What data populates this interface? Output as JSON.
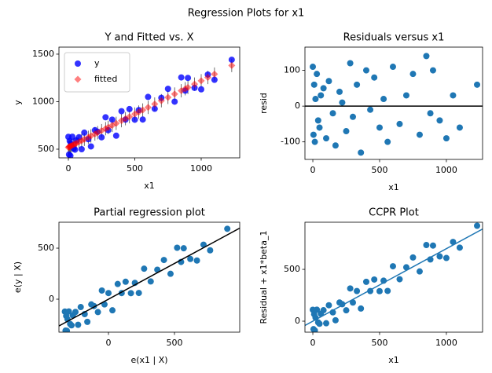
{
  "title": "Regression Plots for x1",
  "chart_data": [
    {
      "type": "scatter",
      "title": "Y and Fitted vs. X",
      "xlabel": "x1",
      "ylabel": "y",
      "legend": "upper left",
      "x": [
        0,
        5,
        10,
        15,
        20,
        30,
        40,
        50,
        60,
        80,
        100,
        120,
        150,
        170,
        200,
        220,
        250,
        280,
        300,
        330,
        360,
        400,
        430,
        460,
        500,
        530,
        560,
        600,
        650,
        700,
        750,
        800,
        850,
        880,
        900,
        950,
        1000,
        1050,
        1100,
        1230
      ],
      "series": [
        {
          "name": "y",
          "color": "#0000ff",
          "marker": "circle",
          "values": [
            630,
            444,
            587,
            431,
            554,
            631,
            508,
            495,
            592,
            626,
            500,
            674,
            605,
            529,
            700,
            684,
            625,
            836,
            700,
            811,
            642,
            900,
            811,
            922,
            810,
            911,
            812,
            1050,
            925,
            1040,
            1135,
            1000,
            1255,
            1116,
            1250,
            1145,
            1130,
            1285,
            1230,
            1441
          ]
        },
        {
          "name": "fitted",
          "color": "#ff0000",
          "marker": "diamond",
          "values": [
            520,
            524,
            527,
            531,
            534,
            541,
            548,
            555,
            562,
            576,
            590,
            604,
            625,
            639,
            660,
            674,
            695,
            716,
            730,
            751,
            772,
            800,
            821,
            842,
            870,
            891,
            912,
            940,
            975,
            1010,
            1045,
            1080,
            1115,
            1136,
            1150,
            1185,
            1220,
            1255,
            1290,
            1381
          ],
          "errors": [
            70,
            70,
            70,
            70,
            70,
            70,
            70,
            70,
            70,
            70,
            70,
            70,
            70,
            70,
            70,
            70,
            70,
            70,
            70,
            70,
            70,
            70,
            70,
            70,
            70,
            70,
            70,
            70,
            70,
            70,
            70,
            70,
            70,
            70,
            70,
            70,
            70,
            70,
            70,
            70
          ]
        }
      ],
      "xlim": [
        -71,
        1290
      ],
      "ylim": [
        409,
        1574
      ],
      "xticks": [
        0,
        500,
        1000
      ],
      "yticks": [
        500,
        1000,
        1500
      ]
    },
    {
      "type": "scatter",
      "title": "Residuals versus x1",
      "xlabel": "x1",
      "ylabel": "resid",
      "hline": 0,
      "x": [
        0,
        5,
        10,
        15,
        20,
        30,
        40,
        50,
        60,
        80,
        100,
        120,
        150,
        170,
        200,
        220,
        250,
        280,
        300,
        330,
        360,
        400,
        430,
        460,
        500,
        530,
        560,
        600,
        650,
        700,
        750,
        800,
        850,
        880,
        900,
        950,
        1000,
        1050,
        1100,
        1230
      ],
      "series": [
        {
          "color": "#1f77b4",
          "values": [
            110,
            -80,
            60,
            -100,
            20,
            90,
            -40,
            -60,
            30,
            50,
            -90,
            70,
            -20,
            -110,
            40,
            10,
            -70,
            120,
            -30,
            60,
            -130,
            100,
            -10,
            80,
            -60,
            20,
            -100,
            110,
            -50,
            30,
            90,
            -80,
            140,
            -20,
            100,
            -40,
            -90,
            30,
            -60,
            60
          ]
        }
      ],
      "xlim": [
        -59,
        1271
      ],
      "ylim": [
        -149,
        165
      ],
      "xticks": [
        0,
        500,
        1000
      ],
      "yticks": [
        -100,
        0,
        100
      ]
    },
    {
      "type": "scatter",
      "title": "Partial regression plot",
      "xlabel": "e(x1 | X)",
      "ylabel": "e(y | X)",
      "fit": {
        "slope": 0.7,
        "intercept": 0,
        "color": "#000000"
      },
      "x": [
        -330,
        -325,
        -320,
        -315,
        -310,
        -300,
        -290,
        -280,
        -270,
        -250,
        -230,
        -210,
        -180,
        -160,
        -130,
        -110,
        -80,
        -50,
        -30,
        0,
        30,
        70,
        100,
        130,
        170,
        200,
        230,
        270,
        320,
        370,
        420,
        470,
        520,
        550,
        570,
        620,
        670,
        720,
        770,
        900
      ],
      "series": [
        {
          "color": "#1f77b4",
          "values": [
            -121,
            -308,
            -164,
            -310,
            -197,
            -120,
            -243,
            -256,
            -159,
            -125,
            -251,
            -77,
            -146,
            -222,
            -51,
            -67,
            -126,
            85,
            -51,
            60,
            -109,
            149,
            60,
            171,
            59,
            160,
            61,
            299,
            174,
            289,
            384,
            249,
            504,
            365,
            499,
            394,
            379,
            534,
            479,
            690
          ]
        }
      ],
      "xlim": [
        -375,
        994
      ],
      "ylim": [
        -323,
        754
      ],
      "xticks": [
        0,
        500
      ],
      "yticks": [
        0,
        500
      ]
    },
    {
      "type": "scatter",
      "title": "CCPR Plot",
      "xlabel": "x1",
      "ylabel": "Residual + x1*beta_1",
      "fit": {
        "slope": 0.7,
        "intercept": 0,
        "color": "#1f77b4"
      },
      "x": [
        0,
        5,
        10,
        15,
        20,
        30,
        40,
        50,
        60,
        80,
        100,
        120,
        150,
        170,
        200,
        220,
        250,
        280,
        300,
        330,
        360,
        400,
        430,
        460,
        500,
        530,
        560,
        600,
        650,
        700,
        750,
        800,
        850,
        880,
        900,
        950,
        1000,
        1050,
        1100,
        1230
      ],
      "series": [
        {
          "color": "#1f77b4",
          "values": [
            110,
            -77,
            67,
            -90,
            34,
            111,
            -12,
            -25,
            72,
            106,
            -20,
            154,
            85,
            9,
            180,
            164,
            105,
            316,
            180,
            291,
            122,
            380,
            291,
            402,
            290,
            391,
            292,
            530,
            405,
            520,
            615,
            480,
            735,
            596,
            730,
            625,
            610,
            765,
            710,
            921
          ]
        }
      ],
      "xlim": [
        -59,
        1271
      ],
      "ylim": [
        -106,
        955
      ],
      "xticks": [
        0,
        500,
        1000
      ],
      "yticks": [
        0,
        500
      ]
    }
  ]
}
